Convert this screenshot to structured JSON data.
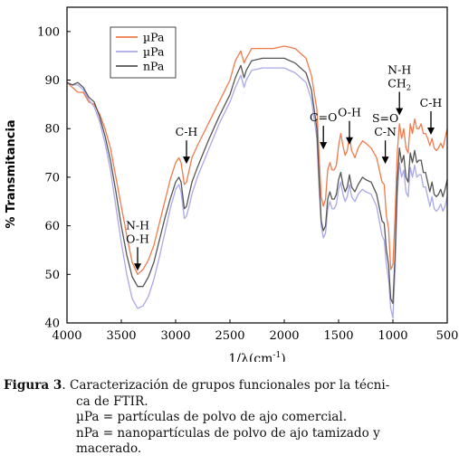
{
  "chart_data": {
    "type": "line",
    "title": "",
    "xlabel": "1/λ(cm",
    "xlabel_sup": "-1",
    "xlabel_tail": ")",
    "ylabel": "% Transmitancia",
    "xlim": [
      4000,
      500
    ],
    "ylim": [
      40,
      105
    ],
    "x_reversed": true,
    "x_ticks": [
      4000,
      3500,
      3000,
      2500,
      2000,
      1500,
      1000,
      500
    ],
    "y_ticks": [
      40,
      50,
      60,
      70,
      80,
      90,
      100
    ],
    "grid": false,
    "legend_position": "top-left",
    "series": [
      {
        "name": "µPa",
        "color": "#f07a4c",
        "points": [
          [
            4000,
            89.5
          ],
          [
            3950,
            88.5
          ],
          [
            3900,
            87.5
          ],
          [
            3850,
            87.5
          ],
          [
            3800,
            85.5
          ],
          [
            3750,
            85
          ],
          [
            3700,
            83
          ],
          [
            3650,
            80
          ],
          [
            3600,
            76
          ],
          [
            3550,
            70
          ],
          [
            3500,
            64
          ],
          [
            3450,
            58
          ],
          [
            3400,
            52.5
          ],
          [
            3350,
            50
          ],
          [
            3300,
            51
          ],
          [
            3250,
            53
          ],
          [
            3200,
            56
          ],
          [
            3150,
            60.5
          ],
          [
            3100,
            65
          ],
          [
            3050,
            69.5
          ],
          [
            3000,
            73
          ],
          [
            2970,
            74
          ],
          [
            2950,
            73
          ],
          [
            2920,
            68.5
          ],
          [
            2900,
            69
          ],
          [
            2870,
            72
          ],
          [
            2850,
            74
          ],
          [
            2800,
            76.5
          ],
          [
            2700,
            81
          ],
          [
            2600,
            85.5
          ],
          [
            2500,
            90
          ],
          [
            2450,
            94
          ],
          [
            2400,
            96
          ],
          [
            2370,
            93.5
          ],
          [
            2350,
            94.5
          ],
          [
            2300,
            96.5
          ],
          [
            2200,
            96.5
          ],
          [
            2100,
            96.5
          ],
          [
            2000,
            97
          ],
          [
            1900,
            96.5
          ],
          [
            1800,
            94.5
          ],
          [
            1750,
            91
          ],
          [
            1700,
            84
          ],
          [
            1680,
            74.5
          ],
          [
            1660,
            66
          ],
          [
            1640,
            64
          ],
          [
            1620,
            65.5
          ],
          [
            1600,
            71.5
          ],
          [
            1580,
            73
          ],
          [
            1560,
            71.5
          ],
          [
            1540,
            71.5
          ],
          [
            1520,
            72.5
          ],
          [
            1500,
            76.5
          ],
          [
            1480,
            79
          ],
          [
            1460,
            76.5
          ],
          [
            1440,
            74.5
          ],
          [
            1420,
            75.5
          ],
          [
            1400,
            78.5
          ],
          [
            1380,
            75.5
          ],
          [
            1350,
            74
          ],
          [
            1320,
            76
          ],
          [
            1280,
            77.5
          ],
          [
            1250,
            77
          ],
          [
            1200,
            76
          ],
          [
            1150,
            74
          ],
          [
            1100,
            69
          ],
          [
            1080,
            68.5
          ],
          [
            1060,
            62
          ],
          [
            1040,
            59.5
          ],
          [
            1020,
            51
          ],
          [
            1000,
            52
          ],
          [
            980,
            62
          ],
          [
            960,
            75
          ],
          [
            940,
            81
          ],
          [
            920,
            78
          ],
          [
            900,
            80
          ],
          [
            880,
            76
          ],
          [
            860,
            75
          ],
          [
            840,
            81
          ],
          [
            820,
            79
          ],
          [
            800,
            82
          ],
          [
            780,
            80
          ],
          [
            760,
            80
          ],
          [
            740,
            81
          ],
          [
            720,
            79
          ],
          [
            700,
            79
          ],
          [
            680,
            78
          ],
          [
            660,
            76.5
          ],
          [
            640,
            78
          ],
          [
            620,
            76
          ],
          [
            600,
            75.5
          ],
          [
            580,
            76
          ],
          [
            560,
            77
          ],
          [
            540,
            76
          ],
          [
            520,
            78
          ],
          [
            500,
            80
          ]
        ]
      },
      {
        "name": "µPa",
        "color": "#a9a9e8",
        "points": [
          [
            4000,
            89.5
          ],
          [
            3950,
            89
          ],
          [
            3900,
            89
          ],
          [
            3850,
            88
          ],
          [
            3800,
            86
          ],
          [
            3750,
            84.5
          ],
          [
            3700,
            81.5
          ],
          [
            3650,
            77
          ],
          [
            3600,
            71.5
          ],
          [
            3550,
            64
          ],
          [
            3500,
            56.5
          ],
          [
            3450,
            50
          ],
          [
            3400,
            45
          ],
          [
            3350,
            43
          ],
          [
            3300,
            43.5
          ],
          [
            3250,
            45.5
          ],
          [
            3200,
            49
          ],
          [
            3150,
            53.5
          ],
          [
            3100,
            58.5
          ],
          [
            3050,
            63.5
          ],
          [
            3000,
            67.5
          ],
          [
            2970,
            68.5
          ],
          [
            2950,
            67
          ],
          [
            2920,
            61.5
          ],
          [
            2900,
            62
          ],
          [
            2870,
            64.5
          ],
          [
            2850,
            66.5
          ],
          [
            2800,
            70
          ],
          [
            2700,
            75.5
          ],
          [
            2600,
            81
          ],
          [
            2500,
            85.5
          ],
          [
            2450,
            88.5
          ],
          [
            2400,
            91
          ],
          [
            2370,
            88.5
          ],
          [
            2350,
            90
          ],
          [
            2300,
            92
          ],
          [
            2200,
            92.5
          ],
          [
            2100,
            92.5
          ],
          [
            2000,
            92.5
          ],
          [
            1900,
            91.5
          ],
          [
            1800,
            89.5
          ],
          [
            1750,
            86
          ],
          [
            1700,
            78
          ],
          [
            1680,
            68
          ],
          [
            1660,
            60
          ],
          [
            1640,
            57.5
          ],
          [
            1620,
            58.5
          ],
          [
            1600,
            63.5
          ],
          [
            1580,
            65
          ],
          [
            1560,
            63.5
          ],
          [
            1540,
            63.5
          ],
          [
            1520,
            64.5
          ],
          [
            1500,
            67.5
          ],
          [
            1480,
            69
          ],
          [
            1460,
            66.5
          ],
          [
            1440,
            65
          ],
          [
            1420,
            66
          ],
          [
            1400,
            68.5
          ],
          [
            1380,
            66
          ],
          [
            1350,
            65
          ],
          [
            1320,
            66.5
          ],
          [
            1280,
            67.5
          ],
          [
            1250,
            67
          ],
          [
            1200,
            66.5
          ],
          [
            1150,
            64
          ],
          [
            1100,
            58
          ],
          [
            1080,
            57
          ],
          [
            1060,
            52
          ],
          [
            1040,
            49
          ],
          [
            1020,
            43
          ],
          [
            1000,
            41
          ],
          [
            980,
            51
          ],
          [
            960,
            66
          ],
          [
            940,
            73
          ],
          [
            920,
            70
          ],
          [
            900,
            71.5
          ],
          [
            880,
            67
          ],
          [
            860,
            66
          ],
          [
            840,
            72
          ],
          [
            820,
            70
          ],
          [
            800,
            72.5
          ],
          [
            780,
            70
          ],
          [
            760,
            70.5
          ],
          [
            740,
            70.5
          ],
          [
            720,
            68
          ],
          [
            700,
            68
          ],
          [
            680,
            66
          ],
          [
            660,
            64
          ],
          [
            640,
            66
          ],
          [
            620,
            63.5
          ],
          [
            600,
            63
          ],
          [
            580,
            63.5
          ],
          [
            560,
            64.5
          ],
          [
            540,
            63
          ],
          [
            520,
            64
          ],
          [
            500,
            66
          ]
        ]
      },
      {
        "name": "nPa",
        "color": "#555555",
        "points": [
          [
            4000,
            89.5
          ],
          [
            3950,
            89
          ],
          [
            3900,
            89.5
          ],
          [
            3850,
            88.5
          ],
          [
            3800,
            86.5
          ],
          [
            3750,
            85.5
          ],
          [
            3700,
            82.5
          ],
          [
            3650,
            78.5
          ],
          [
            3600,
            73.5
          ],
          [
            3550,
            67
          ],
          [
            3500,
            60
          ],
          [
            3450,
            54
          ],
          [
            3400,
            49.5
          ],
          [
            3350,
            47.5
          ],
          [
            3300,
            47.5
          ],
          [
            3250,
            49.5
          ],
          [
            3200,
            52.5
          ],
          [
            3150,
            57
          ],
          [
            3100,
            61.5
          ],
          [
            3050,
            65.5
          ],
          [
            3000,
            69
          ],
          [
            2970,
            70
          ],
          [
            2950,
            69
          ],
          [
            2920,
            63.5
          ],
          [
            2900,
            64
          ],
          [
            2870,
            67
          ],
          [
            2850,
            69
          ],
          [
            2800,
            72
          ],
          [
            2700,
            77.5
          ],
          [
            2600,
            82.5
          ],
          [
            2500,
            87
          ],
          [
            2450,
            90.5
          ],
          [
            2400,
            93
          ],
          [
            2370,
            90.5
          ],
          [
            2350,
            92
          ],
          [
            2300,
            94
          ],
          [
            2200,
            94.5
          ],
          [
            2100,
            94.5
          ],
          [
            2000,
            94.5
          ],
          [
            1900,
            93.5
          ],
          [
            1800,
            91.5
          ],
          [
            1750,
            88
          ],
          [
            1700,
            80
          ],
          [
            1680,
            70
          ],
          [
            1660,
            61
          ],
          [
            1640,
            59
          ],
          [
            1620,
            60
          ],
          [
            1600,
            65.5
          ],
          [
            1580,
            67
          ],
          [
            1560,
            65.5
          ],
          [
            1540,
            65.5
          ],
          [
            1520,
            66.5
          ],
          [
            1500,
            69.5
          ],
          [
            1480,
            71
          ],
          [
            1460,
            68.5
          ],
          [
            1440,
            67
          ],
          [
            1420,
            68
          ],
          [
            1400,
            70.5
          ],
          [
            1380,
            68
          ],
          [
            1350,
            67
          ],
          [
            1320,
            68.5
          ],
          [
            1280,
            70
          ],
          [
            1250,
            69.5
          ],
          [
            1200,
            69
          ],
          [
            1150,
            66.5
          ],
          [
            1100,
            61
          ],
          [
            1080,
            60.5
          ],
          [
            1060,
            55
          ],
          [
            1040,
            52
          ],
          [
            1020,
            45
          ],
          [
            1000,
            44
          ],
          [
            980,
            54
          ],
          [
            960,
            69
          ],
          [
            940,
            76
          ],
          [
            920,
            73
          ],
          [
            900,
            74.5
          ],
          [
            880,
            70
          ],
          [
            860,
            69
          ],
          [
            840,
            75
          ],
          [
            820,
            73
          ],
          [
            800,
            75.5
          ],
          [
            780,
            73
          ],
          [
            760,
            73.5
          ],
          [
            740,
            73.5
          ],
          [
            720,
            71
          ],
          [
            700,
            71
          ],
          [
            680,
            69
          ],
          [
            660,
            67
          ],
          [
            640,
            69
          ],
          [
            620,
            66.5
          ],
          [
            600,
            66
          ],
          [
            580,
            66.5
          ],
          [
            560,
            67.5
          ],
          [
            540,
            66
          ],
          [
            520,
            67.5
          ],
          [
            500,
            69.5
          ]
        ]
      }
    ],
    "annotations": [
      {
        "lines": [
          "N-H",
          "O-H"
        ],
        "x": 3350,
        "y": 50
      },
      {
        "lines": [
          "C-H"
        ],
        "x": 2900,
        "y": 72
      },
      {
        "lines": [
          "C=O"
        ],
        "x": 1640,
        "y": 75
      },
      {
        "lines": [
          "O-H"
        ],
        "x": 1400,
        "y": 76
      },
      {
        "lines": [
          "S=O",
          "C-N"
        ],
        "x": 1070,
        "y": 72
      },
      {
        "lines": [
          "N-H",
          "CH2"
        ],
        "x": 940,
        "y": 82
      },
      {
        "lines": [
          "C-H"
        ],
        "x": 650,
        "y": 78
      }
    ]
  },
  "caption": {
    "label": "Figura 3",
    "line1": ". Caracterización de grupos funcionales por la técni-",
    "line2": "ca de FTIR.",
    "line3": "µPa =  partículas de polvo de ajo comercial.",
    "line4": "nPa = nanopartículas de polvo de ajo tamizado y",
    "line5": "macerado."
  }
}
